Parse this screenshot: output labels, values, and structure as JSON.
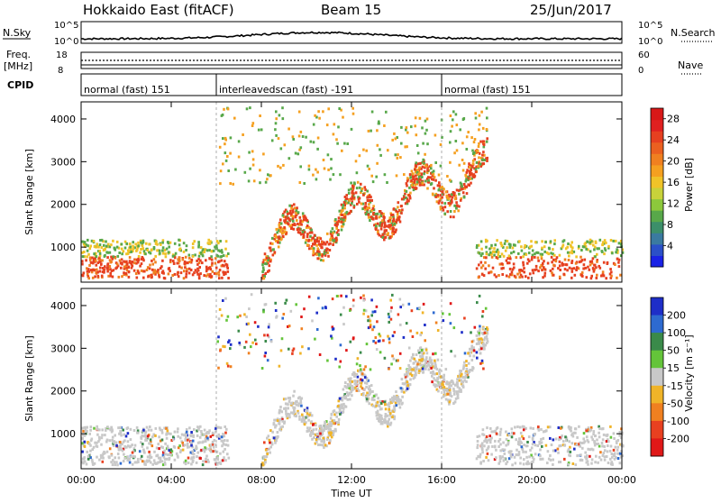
{
  "header": {
    "radar": "Hokkaido East (fitACF)",
    "beam": "Beam 15",
    "date": "25/Jun/2017"
  },
  "strip": {
    "nsky_label": "N.Sky",
    "nsky_ticks": [
      "10^5",
      "10^0"
    ],
    "nsearch_label": "N.Search",
    "nsearch_ticks": [
      "10^5",
      "10^0"
    ],
    "freq_label": "Freq.",
    "freq_unit": "[MHz]",
    "freq_ticks": [
      "18",
      "8"
    ],
    "nave_label": "Nave",
    "nave_ticks": [
      "60",
      "0"
    ],
    "cpid_label": "CPID",
    "cpid_segments": [
      {
        "label": "normal (fast) 151",
        "start_h": 0,
        "end_h": 6
      },
      {
        "label": "interleavedscan (fast) -191",
        "start_h": 6,
        "end_h": 16
      },
      {
        "label": "normal (fast) 151",
        "start_h": 16,
        "end_h": 24
      }
    ]
  },
  "chart_data": [
    {
      "type": "heatmap",
      "name": "power",
      "ylabel": "Slant Range [km]",
      "xlabel": "Time UT",
      "xlim_h": [
        0,
        24
      ],
      "ylim_km": [
        180,
        4400
      ],
      "x_ticks": [
        "00:00",
        "04:00",
        "08:00",
        "12:00",
        "16:00",
        "20:00",
        "00:00"
      ],
      "x_tick_hours": [
        0,
        4,
        8,
        12,
        16,
        20,
        24
      ],
      "y_ticks": [
        1000,
        2000,
        3000,
        4000
      ],
      "colorbar": {
        "label": "Power [dB]",
        "ticks": [
          4,
          8,
          12,
          16,
          20,
          24,
          28
        ],
        "range": [
          0,
          30
        ],
        "colors": [
          "#1a22e6",
          "#2b50c8",
          "#3a7aa0",
          "#3c8f6a",
          "#58a84a",
          "#8cc83c",
          "#c8d23a",
          "#f0c328",
          "#f5a020",
          "#f08020",
          "#eb6020",
          "#e64020",
          "#e02020",
          "#d81818"
        ]
      },
      "grid": false,
      "dashed_markers_h": [
        6,
        16
      ]
    },
    {
      "type": "heatmap",
      "name": "velocity",
      "ylabel": "Slant Range [km]",
      "xlabel": "Time UT",
      "xlim_h": [
        0,
        24
      ],
      "ylim_km": [
        180,
        4400
      ],
      "x_ticks": [
        "00:00",
        "04:00",
        "08:00",
        "12:00",
        "16:00",
        "20:00",
        "00:00"
      ],
      "x_tick_hours": [
        0,
        4,
        8,
        12,
        16,
        20,
        24
      ],
      "y_ticks": [
        1000,
        2000,
        3000,
        4000
      ],
      "colorbar": {
        "label": "Velocity [m s⁻¹]",
        "ticks": [
          "200",
          "100",
          "50",
          "15",
          "-15",
          "-50",
          "-100",
          "-200"
        ],
        "colors": [
          "#1e2ec8",
          "#2e6ad0",
          "#3a8a4a",
          "#64c43a",
          "#c8c8c8",
          "#f0b428",
          "#f08020",
          "#e84020",
          "#e01818"
        ]
      },
      "grid": false,
      "dashed_markers_h": [
        6,
        16
      ]
    }
  ],
  "colors": {
    "axis": "#000000",
    "marker": "#999999"
  }
}
